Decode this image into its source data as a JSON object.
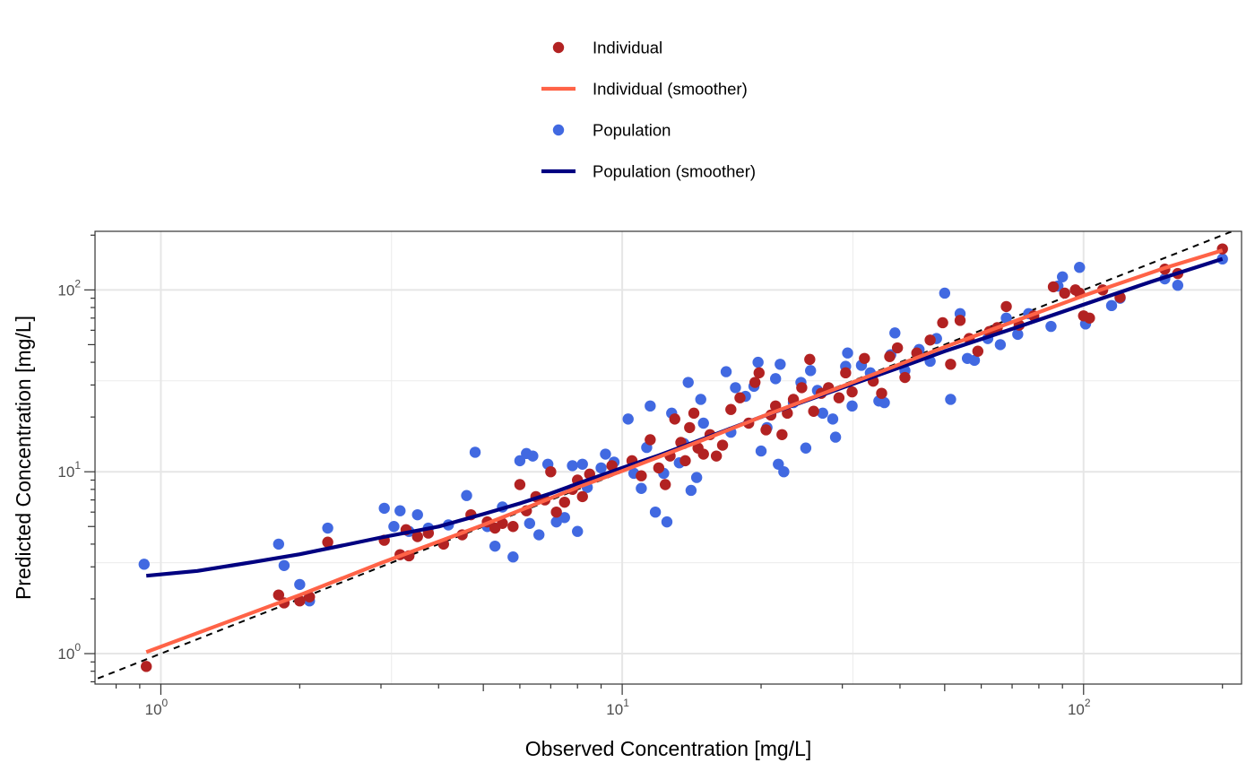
{
  "chart_data": {
    "type": "scatter",
    "xlabel": "Observed Concentration [mg/L]",
    "ylabel": "Predicted Concentration [mg/L]",
    "x_scale": "log10",
    "y_scale": "log10",
    "xlim": [
      0.72,
      220
    ],
    "ylim": [
      0.68,
      210
    ],
    "x_ticks": [
      {
        "base": "10",
        "exp": "0"
      },
      {
        "base": "10",
        "exp": "1"
      },
      {
        "base": "10",
        "exp": "2"
      }
    ],
    "y_ticks": [
      {
        "base": "10",
        "exp": "0"
      },
      {
        "base": "10",
        "exp": "1"
      },
      {
        "base": "10",
        "exp": "2"
      }
    ],
    "grid": true,
    "legend_position": "top",
    "identity_line": {
      "style": "dashed",
      "color": "#000000"
    },
    "legend": [
      {
        "label": "Individual",
        "kind": "point",
        "color": "#B22222"
      },
      {
        "label": "Individual (smoother)",
        "kind": "line",
        "color": "#FF6347"
      },
      {
        "label": "Population",
        "kind": "point",
        "color": "#4169E1"
      },
      {
        "label": "Population (smoother)",
        "kind": "line",
        "color": "#000080"
      }
    ],
    "series": [
      {
        "name": "Population",
        "kind": "point",
        "color": "#4169E1",
        "points": [
          [
            0.92,
            3.1
          ],
          [
            1.8,
            4.0
          ],
          [
            1.85,
            3.05
          ],
          [
            2.0,
            2.4
          ],
          [
            2.1,
            1.95
          ],
          [
            2.3,
            4.9
          ],
          [
            3.05,
            6.3
          ],
          [
            3.2,
            5.0
          ],
          [
            3.3,
            6.1
          ],
          [
            3.45,
            4.7
          ],
          [
            3.6,
            5.8
          ],
          [
            3.8,
            4.9
          ],
          [
            4.2,
            5.1
          ],
          [
            4.6,
            7.4
          ],
          [
            4.8,
            12.8
          ],
          [
            5.1,
            5.0
          ],
          [
            5.3,
            3.9
          ],
          [
            5.5,
            6.4
          ],
          [
            5.8,
            3.4
          ],
          [
            6.0,
            11.5
          ],
          [
            6.2,
            12.6
          ],
          [
            6.3,
            5.2
          ],
          [
            6.4,
            12.2
          ],
          [
            6.6,
            4.5
          ],
          [
            6.9,
            11.0
          ],
          [
            7.2,
            5.3
          ],
          [
            7.5,
            5.6
          ],
          [
            7.8,
            10.8
          ],
          [
            8.0,
            4.7
          ],
          [
            8.2,
            11.0
          ],
          [
            8.4,
            8.2
          ],
          [
            9.0,
            10.5
          ],
          [
            9.2,
            12.5
          ],
          [
            9.6,
            11.3
          ],
          [
            10.3,
            19.5
          ],
          [
            10.6,
            9.8
          ],
          [
            11.0,
            8.1
          ],
          [
            11.3,
            13.6
          ],
          [
            11.5,
            23.0
          ],
          [
            11.8,
            6.0
          ],
          [
            12.3,
            9.8
          ],
          [
            12.5,
            5.3
          ],
          [
            12.8,
            21.0
          ],
          [
            13.3,
            11.2
          ],
          [
            13.6,
            14.3
          ],
          [
            13.9,
            31.0
          ],
          [
            14.1,
            7.9
          ],
          [
            14.5,
            9.3
          ],
          [
            14.8,
            25.0
          ],
          [
            15.0,
            18.5
          ],
          [
            16.8,
            35.5
          ],
          [
            17.2,
            16.5
          ],
          [
            17.6,
            29.0
          ],
          [
            18.5,
            26.0
          ],
          [
            19.3,
            29.5
          ],
          [
            19.7,
            40.0
          ],
          [
            20.0,
            13.0
          ],
          [
            20.6,
            17.5
          ],
          [
            21.5,
            32.5
          ],
          [
            21.8,
            11.0
          ],
          [
            22.0,
            39.0
          ],
          [
            22.4,
            10.0
          ],
          [
            23.5,
            24.0
          ],
          [
            24.4,
            31.0
          ],
          [
            25.0,
            13.5
          ],
          [
            25.6,
            36.0
          ],
          [
            26.5,
            28.0
          ],
          [
            27.2,
            21.0
          ],
          [
            28.6,
            19.5
          ],
          [
            29.0,
            15.5
          ],
          [
            30.5,
            38.0
          ],
          [
            30.8,
            45.0
          ],
          [
            31.5,
            23.0
          ],
          [
            33.0,
            38.5
          ],
          [
            34.5,
            35.0
          ],
          [
            36.0,
            24.5
          ],
          [
            37.0,
            24.0
          ],
          [
            38.2,
            44.0
          ],
          [
            39.0,
            58.0
          ],
          [
            41.0,
            36.0
          ],
          [
            44.0,
            47.0
          ],
          [
            46.5,
            40.5
          ],
          [
            48.0,
            54.0
          ],
          [
            50.0,
            96.0
          ],
          [
            51.5,
            25.0
          ],
          [
            54.0,
            74.0
          ],
          [
            56.0,
            42.0
          ],
          [
            58.0,
            41.0
          ],
          [
            62.0,
            54.0
          ],
          [
            66.0,
            50.0
          ],
          [
            68.0,
            70.0
          ],
          [
            72.0,
            57.0
          ],
          [
            76.0,
            74.0
          ],
          [
            85.0,
            63.0
          ],
          [
            88.0,
            105.0
          ],
          [
            90.0,
            118.0
          ],
          [
            98.0,
            133.0
          ],
          [
            101.0,
            65.0
          ],
          [
            115.0,
            82.0
          ],
          [
            120.0,
            90.0
          ],
          [
            150.0,
            115.0
          ],
          [
            160.0,
            106.0
          ],
          [
            200.0,
            148.0
          ]
        ]
      },
      {
        "name": "Individual",
        "kind": "point",
        "color": "#B22222",
        "points": [
          [
            0.93,
            0.85
          ],
          [
            1.8,
            2.1
          ],
          [
            1.85,
            1.9
          ],
          [
            2.0,
            1.95
          ],
          [
            2.1,
            2.05
          ],
          [
            2.3,
            4.1
          ],
          [
            3.05,
            4.2
          ],
          [
            3.3,
            3.5
          ],
          [
            3.4,
            4.8
          ],
          [
            3.45,
            3.45
          ],
          [
            3.6,
            4.4
          ],
          [
            3.8,
            4.6
          ],
          [
            4.1,
            4.0
          ],
          [
            4.5,
            4.5
          ],
          [
            4.7,
            5.8
          ],
          [
            5.1,
            5.3
          ],
          [
            5.3,
            4.9
          ],
          [
            5.5,
            5.2
          ],
          [
            5.8,
            5.0
          ],
          [
            6.0,
            8.5
          ],
          [
            6.2,
            6.1
          ],
          [
            6.5,
            7.3
          ],
          [
            6.8,
            7.0
          ],
          [
            7.0,
            10.0
          ],
          [
            7.2,
            6.0
          ],
          [
            7.5,
            6.8
          ],
          [
            7.8,
            8.0
          ],
          [
            8.0,
            9.0
          ],
          [
            8.2,
            7.3
          ],
          [
            8.5,
            9.7
          ],
          [
            9.5,
            10.8
          ],
          [
            10.5,
            11.5
          ],
          [
            11.0,
            9.5
          ],
          [
            11.5,
            15.0
          ],
          [
            12.0,
            10.5
          ],
          [
            12.4,
            8.5
          ],
          [
            12.7,
            12.2
          ],
          [
            13.0,
            19.5
          ],
          [
            13.4,
            14.5
          ],
          [
            13.7,
            11.5
          ],
          [
            14.0,
            17.5
          ],
          [
            14.3,
            21.0
          ],
          [
            14.6,
            13.5
          ],
          [
            15.0,
            12.5
          ],
          [
            15.5,
            16.0
          ],
          [
            16.0,
            12.2
          ],
          [
            16.5,
            14.0
          ],
          [
            17.2,
            22.0
          ],
          [
            18.0,
            25.5
          ],
          [
            18.8,
            18.5
          ],
          [
            19.4,
            31.0
          ],
          [
            19.8,
            35.0
          ],
          [
            20.5,
            17.0
          ],
          [
            21.0,
            20.5
          ],
          [
            21.5,
            23.0
          ],
          [
            22.2,
            16.0
          ],
          [
            22.8,
            21.0
          ],
          [
            23.5,
            25.0
          ],
          [
            24.5,
            29.0
          ],
          [
            25.5,
            41.5
          ],
          [
            26.0,
            21.5
          ],
          [
            27.0,
            27.0
          ],
          [
            28.0,
            29.0
          ],
          [
            29.5,
            25.5
          ],
          [
            30.5,
            35.0
          ],
          [
            31.5,
            27.5
          ],
          [
            33.5,
            42.0
          ],
          [
            35.0,
            31.5
          ],
          [
            36.5,
            27.0
          ],
          [
            38.0,
            43.0
          ],
          [
            39.5,
            48.0
          ],
          [
            41.0,
            33.0
          ],
          [
            43.5,
            45.0
          ],
          [
            46.5,
            53.0
          ],
          [
            49.5,
            66.0
          ],
          [
            51.5,
            39.0
          ],
          [
            54.0,
            68.0
          ],
          [
            56.5,
            54.0
          ],
          [
            59.0,
            46.0
          ],
          [
            62.5,
            59.0
          ],
          [
            65.0,
            62.0
          ],
          [
            68.0,
            81.0
          ],
          [
            72.5,
            64.0
          ],
          [
            78.0,
            72.0
          ],
          [
            86.0,
            104.0
          ],
          [
            91.0,
            96.0
          ],
          [
            96.0,
            100.0
          ],
          [
            98.0,
            96.0
          ],
          [
            100.0,
            72.0
          ],
          [
            103.0,
            70.0
          ],
          [
            110.0,
            100.0
          ],
          [
            120.0,
            91.0
          ],
          [
            150.0,
            130.0
          ],
          [
            160.0,
            123.0
          ],
          [
            200.0,
            168.0
          ]
        ]
      },
      {
        "name": "Population (smoother)",
        "kind": "line",
        "color": "#000080",
        "points": [
          [
            0.93,
            2.68
          ],
          [
            1.2,
            2.85
          ],
          [
            1.6,
            3.2
          ],
          [
            2.0,
            3.52
          ],
          [
            2.5,
            3.95
          ],
          [
            3.0,
            4.35
          ],
          [
            4.0,
            5.0
          ],
          [
            5.0,
            5.85
          ],
          [
            6.0,
            6.7
          ],
          [
            7.0,
            7.6
          ],
          [
            8.0,
            8.6
          ],
          [
            10.0,
            10.5
          ],
          [
            12.0,
            12.3
          ],
          [
            15.0,
            15.2
          ],
          [
            20.0,
            20.0
          ],
          [
            30.0,
            29.0
          ],
          [
            40.0,
            37.5
          ],
          [
            50.0,
            46.0
          ],
          [
            70.0,
            61.0
          ],
          [
            100.0,
            83.0
          ],
          [
            140.0,
            111.0
          ],
          [
            200.0,
            148.0
          ]
        ]
      },
      {
        "name": "Individual (smoother)",
        "kind": "line",
        "color": "#FF6347",
        "points": [
          [
            0.93,
            1.02
          ],
          [
            2.0,
            2.1
          ],
          [
            3.0,
            3.15
          ],
          [
            5.0,
            5.1
          ],
          [
            8.0,
            8.2
          ],
          [
            10.0,
            10.1
          ],
          [
            15.0,
            15.0
          ],
          [
            20.0,
            20.0
          ],
          [
            30.0,
            29.5
          ],
          [
            50.0,
            48.5
          ],
          [
            100.0,
            93.0
          ],
          [
            150.0,
            132.0
          ],
          [
            200.0,
            165.0
          ]
        ]
      }
    ]
  }
}
